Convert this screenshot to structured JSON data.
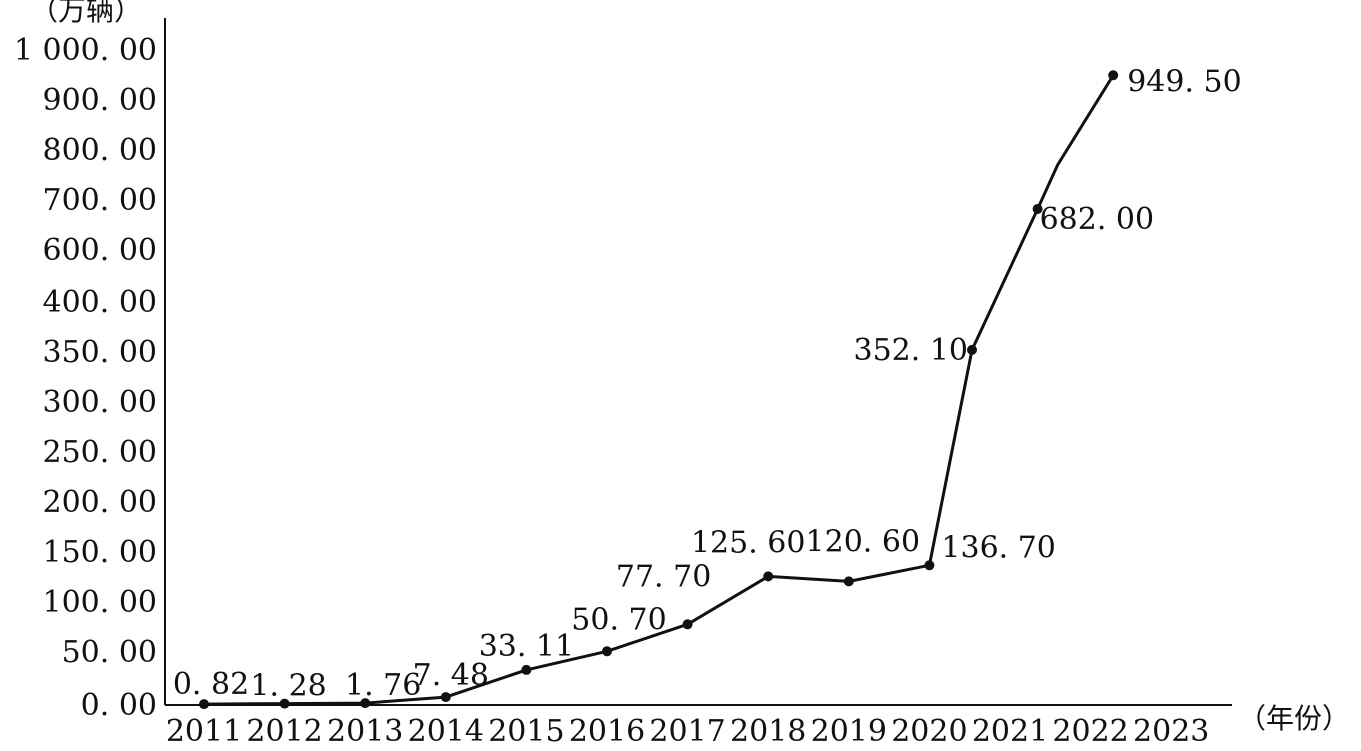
{
  "chart_data": {
    "type": "line",
    "y_unit_label": "（万辆）",
    "x_unit_label": "（年份）",
    "x_categories": [
      "2011",
      "2012",
      "2013",
      "2014",
      "2015",
      "2016",
      "2017",
      "2018",
      "2019",
      "2020",
      "2021",
      "2022",
      "2023"
    ],
    "y_tick_labels": [
      "0. 00",
      "50. 00",
      "100. 00",
      "150. 00",
      "200. 00",
      "250. 00",
      "300. 00",
      "350. 00",
      "400. 00",
      "600. 00",
      "700. 00",
      "800. 00",
      "900. 00",
      "1 000. 00"
    ],
    "y_tick_values": [
      0,
      50,
      100,
      150,
      200,
      250,
      300,
      350,
      400,
      600,
      700,
      800,
      900,
      1000
    ],
    "series": [
      {
        "points": [
          {
            "x": 2011,
            "y": 0.82,
            "label": "0. 82"
          },
          {
            "x": 2012,
            "y": 1.28,
            "label": "1. 28"
          },
          {
            "x": 2013,
            "y": 1.76,
            "label": "1. 76"
          },
          {
            "x": 2014,
            "y": 7.48,
            "label": "7. 48"
          },
          {
            "x": 2015,
            "y": 33.11,
            "label": "33. 11"
          },
          {
            "x": 2016,
            "y": 50.7,
            "label": "50. 70"
          },
          {
            "x": 2017,
            "y": 77.7,
            "label": "77. 70"
          },
          {
            "x": 2018,
            "y": 125.6,
            "label": "125. 60"
          },
          {
            "x": 2019,
            "y": 120.6,
            "label": "120. 60"
          },
          {
            "x": 2020,
            "y": 136.7,
            "label": "136. 70"
          },
          {
            "x": 2021,
            "y": 352.1,
            "label": "352. 10"
          },
          {
            "x": 2022,
            "y": 682.0,
            "label": "682. 00"
          },
          {
            "x": 2023,
            "y": 949.5,
            "label": "949. 50"
          }
        ]
      }
    ],
    "grid": false,
    "legend": "none"
  }
}
